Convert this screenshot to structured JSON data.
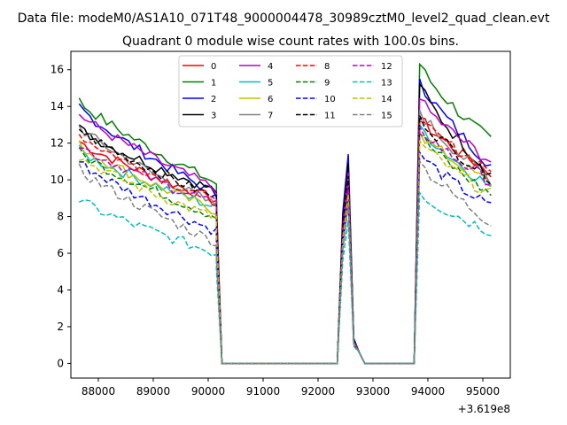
{
  "chart_data": {
    "type": "line",
    "suptitle": "Data file: modeM0/AS1A10_071T48_9000004478_30989cztM0_level2_quad_clean.evt",
    "title": "Quadrant 0 module wise count rates with 100.0s bins.",
    "xlabel": "",
    "ylabel": "",
    "x_offset_label": "+3.619e8",
    "xlim": [
      87500,
      95500
    ],
    "ylim": [
      -0.8,
      17.0
    ],
    "xticks": [
      88000,
      89000,
      90000,
      91000,
      92000,
      93000,
      94000,
      95000
    ],
    "yticks": [
      0,
      2,
      4,
      6,
      8,
      10,
      12,
      14,
      16
    ],
    "x_segments": {
      "seg1": {
        "start": 87650,
        "step": 100,
        "count": 26
      },
      "zero1": [
        90250,
        92350
      ],
      "seg2": [
        92450,
        92550,
        92650,
        92750
      ],
      "zero2": [
        92850,
        93750
      ],
      "seg3": {
        "start": 93850,
        "step": 100,
        "count": 14
      }
    },
    "series": [
      {
        "name": "0",
        "color": "#ff0000",
        "dash": "solid",
        "base": 12.1,
        "end": 8.9,
        "p2": 9.8,
        "p3": 13.4,
        "p3end": 10.4
      },
      {
        "name": "1",
        "color": "#008000",
        "dash": "solid",
        "base": 14.3,
        "end": 9.8,
        "p2": 10.7,
        "p3": 16.3,
        "p3end": 12.1
      },
      {
        "name": "2",
        "color": "#0000ff",
        "dash": "solid",
        "base": 14.0,
        "end": 9.2,
        "p2": 11.4,
        "p3": 15.5,
        "p3end": 10.8
      },
      {
        "name": "3",
        "color": "#000000",
        "dash": "solid",
        "base": 12.8,
        "end": 9.4,
        "p2": 10.9,
        "p3": 15.2,
        "p3end": 10.3
      },
      {
        "name": "4",
        "color": "#bf00bf",
        "dash": "solid",
        "base": 13.6,
        "end": 9.5,
        "p2": 10.4,
        "p3": 14.4,
        "p3end": 11.0
      },
      {
        "name": "5",
        "color": "#00bfbf",
        "dash": "solid",
        "base": 11.6,
        "end": 8.5,
        "p2": 9.6,
        "p3": 13.0,
        "p3end": 9.6
      },
      {
        "name": "6",
        "color": "#bfbf00",
        "dash": "solid",
        "base": 11.9,
        "end": 8.3,
        "p2": 9.4,
        "p3": 12.6,
        "p3end": 9.8
      },
      {
        "name": "7",
        "color": "#808080",
        "dash": "solid",
        "base": 12.9,
        "end": 8.6,
        "p2": 10.0,
        "p3": 13.8,
        "p3end": 10.0
      },
      {
        "name": "8",
        "color": "#ff0000",
        "dash": "dashed",
        "base": 12.5,
        "end": 8.8,
        "p2": 9.9,
        "p3": 13.2,
        "p3end": 10.6
      },
      {
        "name": "9",
        "color": "#008000",
        "dash": "dashed",
        "base": 11.5,
        "end": 8.0,
        "p2": 9.3,
        "p3": 12.5,
        "p3end": 9.2
      },
      {
        "name": "10",
        "color": "#0000ff",
        "dash": "dashed",
        "base": 11.0,
        "end": 7.2,
        "p2": 9.0,
        "p3": 11.5,
        "p3end": 8.5
      },
      {
        "name": "11",
        "color": "#000000",
        "dash": "dashed",
        "base": 12.8,
        "end": 9.0,
        "p2": 10.2,
        "p3": 13.5,
        "p3end": 10.1
      },
      {
        "name": "12",
        "color": "#bf00bf",
        "dash": "dashed",
        "base": 11.9,
        "end": 8.7,
        "p2": 9.7,
        "p3": 12.9,
        "p3end": 9.9
      },
      {
        "name": "13",
        "color": "#00bfbf",
        "dash": "dashed",
        "base": 8.9,
        "end": 6.0,
        "p2": 7.8,
        "p3": 9.3,
        "p3end": 7.2
      },
      {
        "name": "14",
        "color": "#bfbf00",
        "dash": "dashed",
        "base": 11.3,
        "end": 7.9,
        "p2": 9.2,
        "p3": 12.1,
        "p3end": 9.2
      },
      {
        "name": "15",
        "color": "#808080",
        "dash": "dashed",
        "base": 10.6,
        "end": 6.6,
        "p2": 8.6,
        "p3": 11.0,
        "p3end": 7.7
      }
    ],
    "legend_position": "upper-center"
  }
}
